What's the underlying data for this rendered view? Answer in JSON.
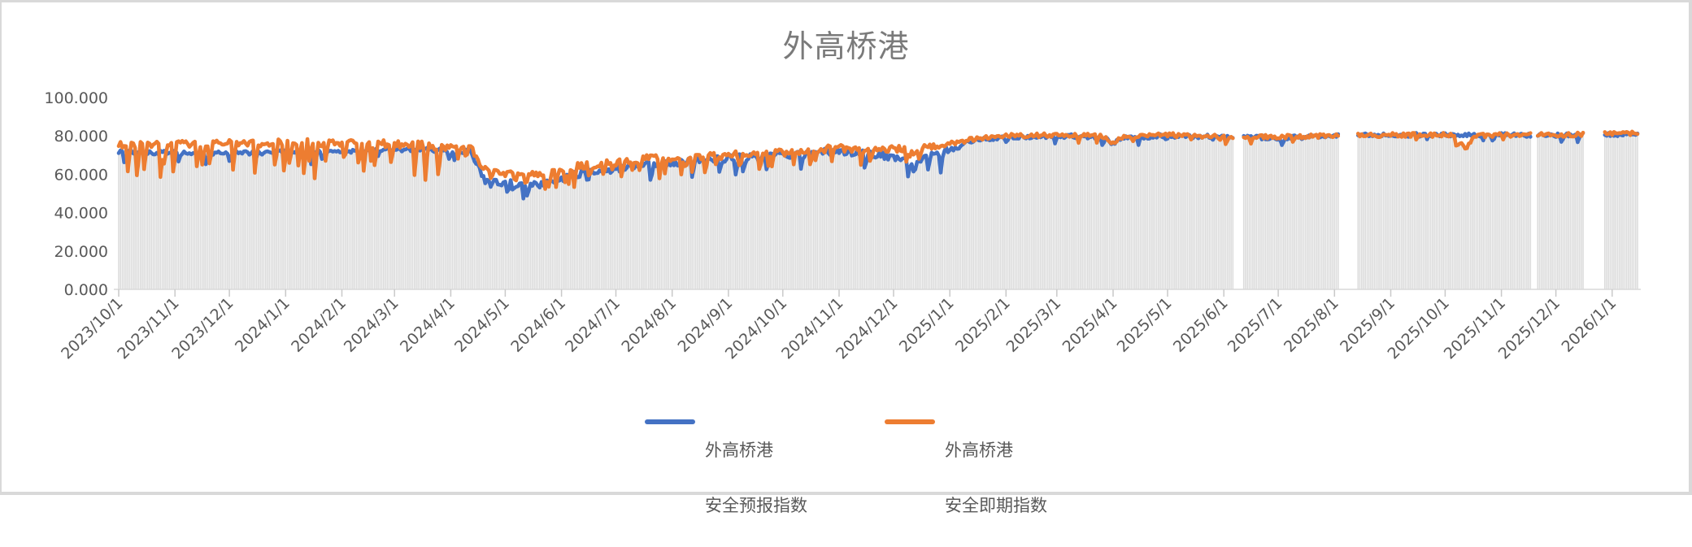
{
  "window": {
    "frame_color": "#d9d9d9",
    "background": "#ffffff"
  },
  "chart_data": {
    "type": "line",
    "title": "外高桥港",
    "xlabel": "",
    "ylabel": "",
    "ylim": [
      0,
      100
    ],
    "grid": false,
    "legend_position": "bottom",
    "y_ticks": [
      {
        "label": "100.000",
        "value": 100
      },
      {
        "label": "80.000",
        "value": 80
      },
      {
        "label": "60.000",
        "value": 60
      },
      {
        "label": "40.000",
        "value": 40
      },
      {
        "label": "20.000",
        "value": 20
      },
      {
        "label": "0.000",
        "value": 0
      }
    ],
    "x_ticks": [
      "2023/10/1",
      "2023/11/1",
      "2023/12/1",
      "2024/1/1",
      "2024/2/1",
      "2024/3/1",
      "2024/4/1",
      "2024/5/1",
      "2024/6/1",
      "2024/7/1",
      "2024/8/1",
      "2024/9/1",
      "2024/10/1",
      "2024/11/1",
      "2024/12/1",
      "2025/1/1",
      "2025/2/1",
      "2025/3/1",
      "2025/4/1",
      "2025/5/1",
      "2025/6/1",
      "2025/7/1",
      "2025/8/1",
      "2025/9/1",
      "2025/10/1",
      "2025/11/1",
      "2025/12/1",
      "2026/1/1"
    ],
    "x_start": "2023/10/1",
    "x_end": "2026/1/15",
    "frequency": "daily",
    "gaps": [
      [
        "2025/6/7",
        "2025/6/11"
      ],
      [
        "2025/8/4",
        "2025/8/13"
      ],
      [
        "2025/11/18",
        "2025/11/20"
      ],
      [
        "2025/12/17",
        "2025/12/27"
      ]
    ],
    "seed": 12,
    "colors": {
      "forecast": "#4472C4",
      "spot": "#ED7D31",
      "drop_lines": "#DCDCDC",
      "axis": "#D9D9D9",
      "tick": "#C9C9C9",
      "label": "#595959",
      "title": "#7A7A7A"
    },
    "series": [
      {
        "name": "外高桥港 安全预报指数",
        "legend_lines": [
          "外高桥港",
          "安全预报指数"
        ],
        "color": "#4472C4",
        "base": [
          [
            "2023/10/1",
            71.5
          ],
          [
            "2023/12/1",
            71
          ],
          [
            "2024/2/1",
            72
          ],
          [
            "2024/3/10",
            73
          ],
          [
            "2024/4/12",
            72
          ],
          [
            "2024/4/20",
            56
          ],
          [
            "2024/5/20",
            54.5
          ],
          [
            "2024/6/10",
            60
          ],
          [
            "2024/7/20",
            65
          ],
          [
            "2024/9/1",
            68.5
          ],
          [
            "2024/10/1",
            70
          ],
          [
            "2024/11/1",
            72
          ],
          [
            "2024/11/25",
            70
          ],
          [
            "2024/12/8",
            66.5
          ],
          [
            "2024/12/20",
            69
          ],
          [
            "2025/1/15",
            78
          ],
          [
            "2025/2/1",
            79.5
          ],
          [
            "2025/3/1",
            80
          ],
          [
            "2025/3/26",
            79.5
          ],
          [
            "2025/4/1",
            76
          ],
          [
            "2025/4/7",
            79
          ],
          [
            "2025/5/1",
            80
          ],
          [
            "2025/6/1",
            79.5
          ],
          [
            "2025/7/1",
            79
          ],
          [
            "2025/8/1",
            80
          ],
          [
            "2025/9/1",
            80.5
          ],
          [
            "2025/12/1",
            80.5
          ],
          [
            "2026/1/15",
            81
          ]
        ],
        "noise": [
          [
            "2023/10/1",
            1.1
          ],
          [
            "2024/4/1",
            1.1
          ],
          [
            "2024/4/20",
            1.9
          ],
          [
            "2024/12/31",
            1.9
          ],
          [
            "2025/1/20",
            1.1
          ],
          [
            "2026/1/15",
            1.1
          ]
        ],
        "spike_prob": [
          [
            "2023/10/1",
            0.06
          ],
          [
            "2024/5/31",
            0.06
          ],
          [
            "2024/6/1",
            0.08
          ],
          [
            "2024/12/31",
            0.08
          ],
          [
            "2025/1/15",
            0.03
          ],
          [
            "2026/1/15",
            0.03
          ]
        ],
        "spike_depth": [
          [
            "2023/10/1",
            6
          ],
          [
            "2024/5/31",
            6
          ],
          [
            "2024/6/1",
            10
          ],
          [
            "2024/12/31",
            10
          ],
          [
            "2025/1/15",
            4
          ],
          [
            "2026/1/15",
            4
          ]
        ]
      },
      {
        "name": "外高桥港 安全即期指数",
        "legend_lines": [
          "外高桥港",
          "安全即期指数"
        ],
        "color": "#ED7D31",
        "base": [
          [
            "2023/10/1",
            75.5
          ],
          [
            "2024/1/1",
            76.5
          ],
          [
            "2024/3/1",
            76
          ],
          [
            "2024/3/25",
            74.5
          ],
          [
            "2024/4/12",
            73
          ],
          [
            "2024/4/20",
            63
          ],
          [
            "2024/5/1",
            60.5
          ],
          [
            "2024/5/20",
            61
          ],
          [
            "2024/6/15",
            64.5
          ],
          [
            "2024/7/15",
            68
          ],
          [
            "2024/9/1",
            70
          ],
          [
            "2024/10/1",
            71.5
          ],
          [
            "2024/11/1",
            73.5
          ],
          [
            "2024/12/1",
            73
          ],
          [
            "2024/12/20",
            74
          ],
          [
            "2025/1/15",
            78.5
          ],
          [
            "2025/2/1",
            80
          ],
          [
            "2025/3/1",
            80.5
          ],
          [
            "2025/3/26",
            80
          ],
          [
            "2025/4/1",
            76.5
          ],
          [
            "2025/4/7",
            79.5
          ],
          [
            "2025/5/1",
            80.5
          ],
          [
            "2025/6/1",
            79.5
          ],
          [
            "2025/7/1",
            79.5
          ],
          [
            "2025/8/1",
            80
          ],
          [
            "2025/9/1",
            80.5
          ],
          [
            "2025/10/5",
            80.5
          ],
          [
            "2025/10/12",
            73.5
          ],
          [
            "2025/10/18",
            80
          ],
          [
            "2025/11/1",
            80.5
          ],
          [
            "2025/12/1",
            80.5
          ],
          [
            "2026/1/15",
            81.5
          ]
        ],
        "noise": [
          [
            "2023/10/1",
            1.7
          ],
          [
            "2024/4/1",
            2.2
          ],
          [
            "2024/12/1",
            1.9
          ],
          [
            "2025/1/20",
            1.1
          ],
          [
            "2026/1/15",
            1.1
          ]
        ],
        "spike_prob": [
          [
            "2023/10/1",
            0.18
          ],
          [
            "2024/3/31",
            0.18
          ],
          [
            "2024/4/1",
            0.15
          ],
          [
            "2024/12/15",
            0.12
          ],
          [
            "2025/1/15",
            0.03
          ],
          [
            "2026/1/15",
            0.03
          ]
        ],
        "spike_depth": [
          [
            "2023/10/1",
            17
          ],
          [
            "2024/3/31",
            17
          ],
          [
            "2024/4/1",
            8
          ],
          [
            "2024/6/1",
            10
          ],
          [
            "2024/12/15",
            9
          ],
          [
            "2025/1/15",
            4
          ],
          [
            "2026/1/15",
            4
          ]
        ]
      }
    ]
  }
}
